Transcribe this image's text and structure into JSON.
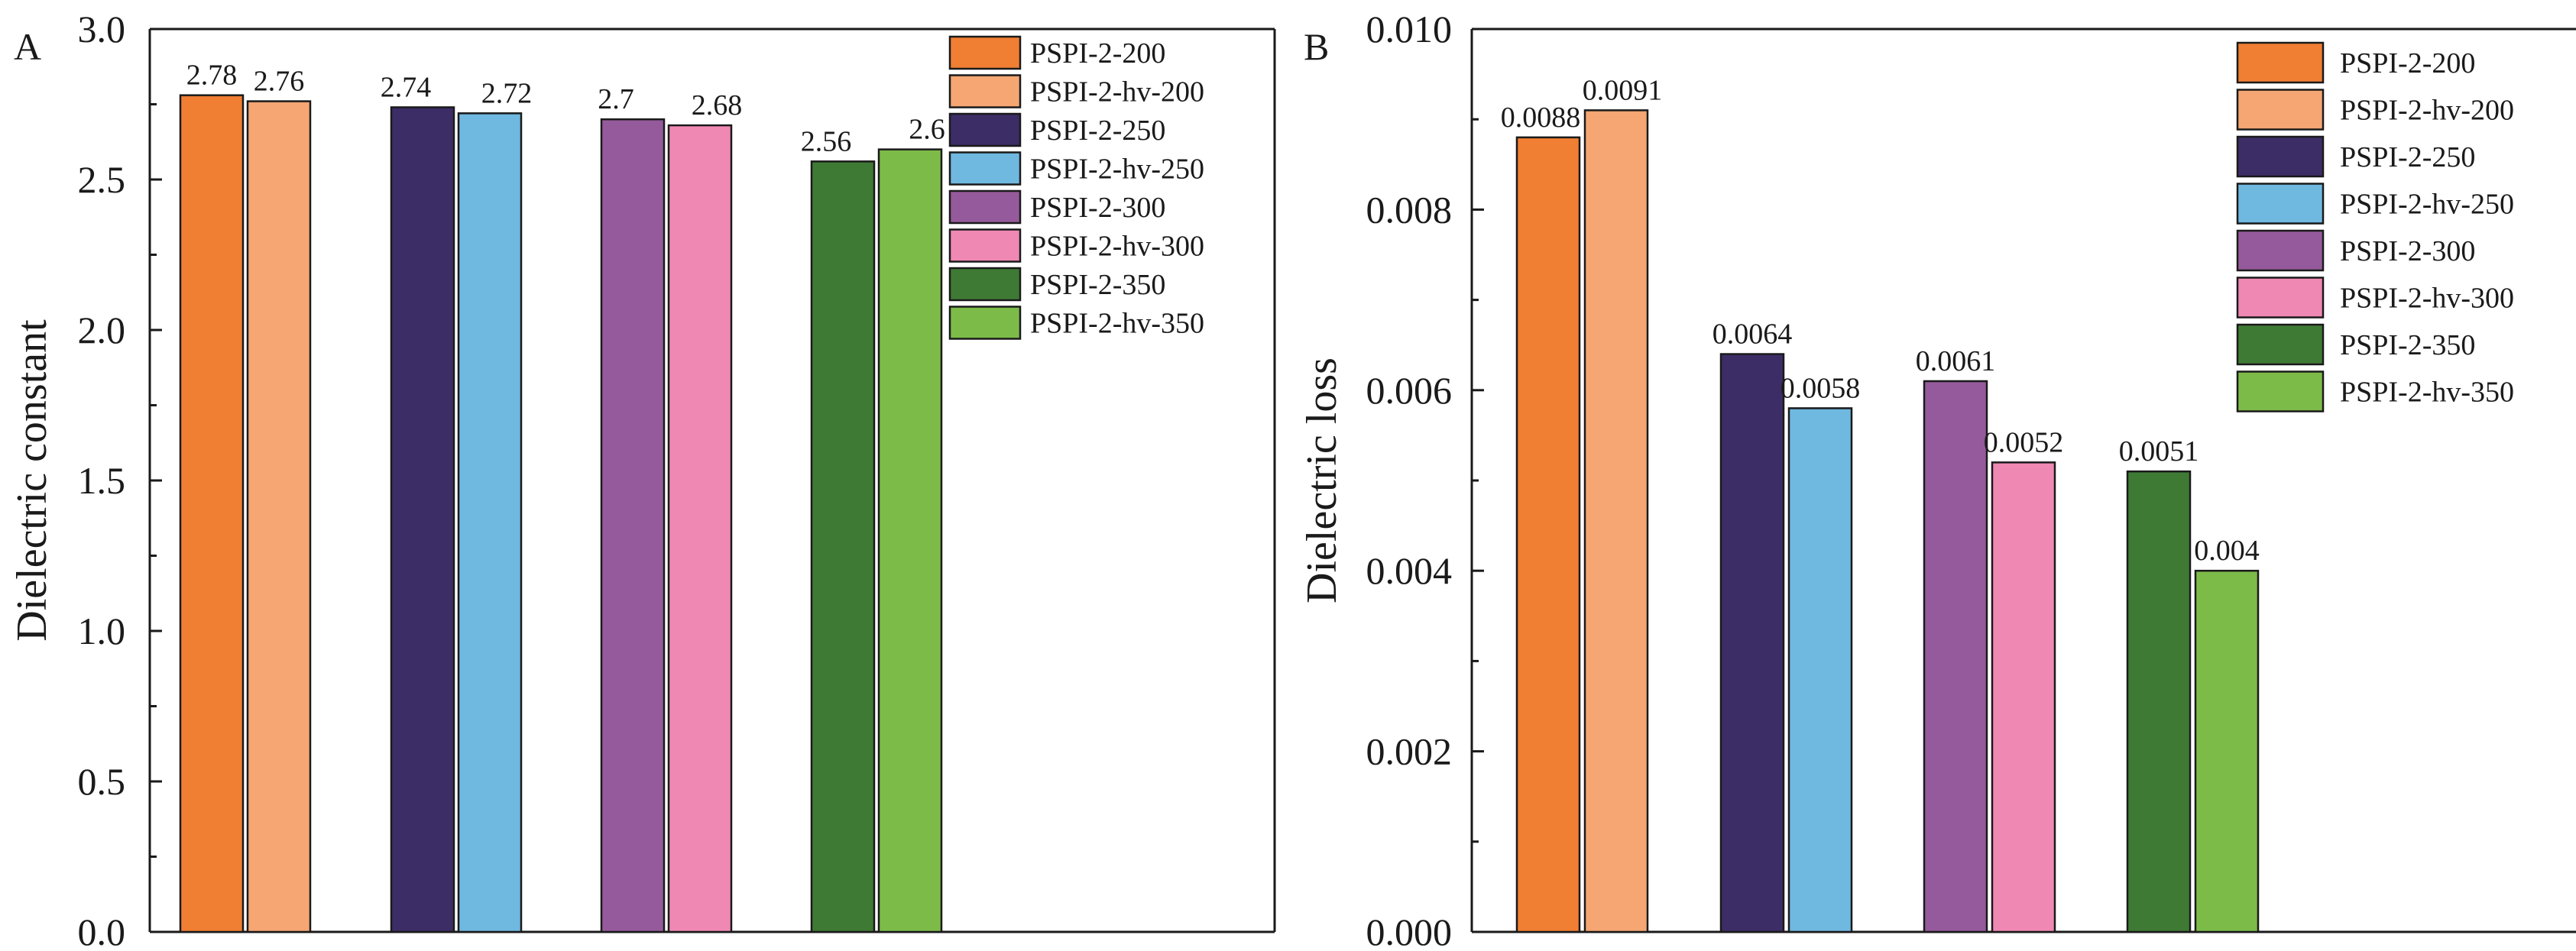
{
  "chart_data": [
    {
      "type": "bar",
      "panel": "A",
      "title": "",
      "xlabel": "",
      "ylabel": "Dielectric constant",
      "ylim": [
        0,
        3.0
      ],
      "yticks": [
        0.0,
        0.5,
        1.0,
        1.5,
        2.0,
        2.5,
        3.0
      ],
      "ytick_labels": [
        "0.0",
        "0.5",
        "1.0",
        "1.5",
        "2.0",
        "2.5",
        "3.0"
      ],
      "legend_position": "top-right",
      "series": [
        {
          "name": "PSPI-2-200",
          "value": 2.78,
          "label": "2.78",
          "color": "#F07E33"
        },
        {
          "name": "PSPI-2-hv-200",
          "value": 2.76,
          "label": "2.76",
          "color": "#F5A673"
        },
        {
          "name": "PSPI-2-250",
          "value": 2.74,
          "label": "2.74",
          "color": "#3C2D66"
        },
        {
          "name": "PSPI-2-hv-250",
          "value": 2.72,
          "label": "2.72",
          "color": "#6FB8E0"
        },
        {
          "name": "PSPI-2-300",
          "value": 2.7,
          "label": "2.7",
          "color": "#955A9B"
        },
        {
          "name": "PSPI-2-hv-300",
          "value": 2.68,
          "label": "2.68",
          "color": "#F088B4"
        },
        {
          "name": "PSPI-2-350",
          "value": 2.56,
          "label": "2.56",
          "color": "#3F7A35"
        },
        {
          "name": "PSPI-2-hv-350",
          "value": 2.6,
          "label": "2.6",
          "color": "#7CBB48"
        }
      ]
    },
    {
      "type": "bar",
      "panel": "B",
      "title": "",
      "xlabel": "",
      "ylabel": "Dielectric loss",
      "ylim": [
        0,
        0.01
      ],
      "yticks": [
        0.0,
        0.002,
        0.004,
        0.006,
        0.008,
        0.01
      ],
      "ytick_labels": [
        "0.000",
        "0.002",
        "0.004",
        "0.006",
        "0.008",
        "0.010"
      ],
      "legend_position": "top-right",
      "series": [
        {
          "name": "PSPI-2-200",
          "value": 0.0088,
          "label": "0.0088",
          "color": "#F07E33"
        },
        {
          "name": "PSPI-2-hv-200",
          "value": 0.0091,
          "label": "0.0091",
          "color": "#F5A673"
        },
        {
          "name": "PSPI-2-250",
          "value": 0.0064,
          "label": "0.0064",
          "color": "#3C2D66"
        },
        {
          "name": "PSPI-2-hv-250",
          "value": 0.0058,
          "label": "0.0058",
          "color": "#6FB8E0"
        },
        {
          "name": "PSPI-2-300",
          "value": 0.0061,
          "label": "0.0061",
          "color": "#955A9B"
        },
        {
          "name": "PSPI-2-hv-300",
          "value": 0.0052,
          "label": "0.0052",
          "color": "#F088B4"
        },
        {
          "name": "PSPI-2-350",
          "value": 0.0051,
          "label": "0.0051",
          "color": "#3F7A35"
        },
        {
          "name": "PSPI-2-hv-350",
          "value": 0.004,
          "label": "0.004",
          "color": "#7CBB48"
        }
      ]
    }
  ]
}
